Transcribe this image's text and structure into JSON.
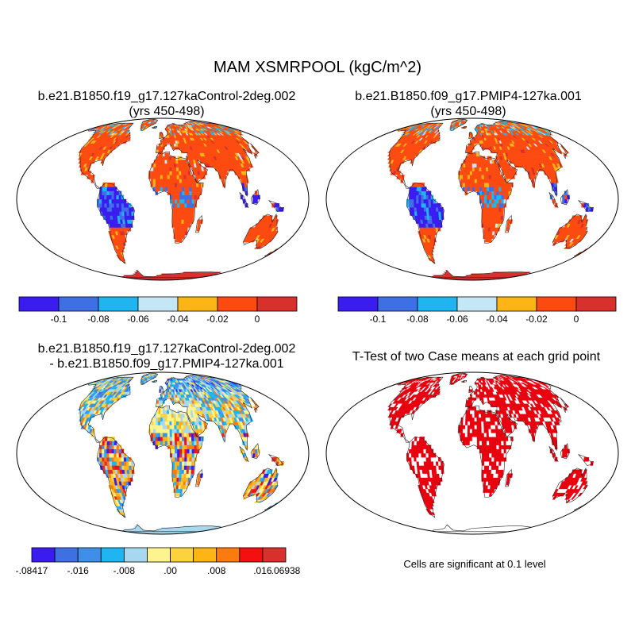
{
  "title": "MAM XSMRPOOL (kgC/m^2)",
  "panels": [
    {
      "title_line1": "b.e21.B1850.f19_g17.127kaControl-2deg.002",
      "title_line2": "(yrs 450-498)"
    },
    {
      "title_line1": "b.e21.B1850.f09_g17.PMIP4-127ka.001",
      "title_line2": "(yrs 450-498)"
    },
    {
      "title_line1": "b.e21.B1850.f19_g17.127kaControl-2deg.002",
      "title_line2": "- b.e21.B1850.f09_g17.PMIP4-127ka.001"
    },
    {
      "title_line1": "T-Test of two Case means at each grid point",
      "title_line2": ""
    }
  ],
  "colorbars": {
    "main": {
      "colors": [
        "#3a1cf0",
        "#3f6fe5",
        "#1eb5f1",
        "#c4e6f5",
        "#fdb515",
        "#fd4a10",
        "#d7302d"
      ],
      "labels": [
        "-0.1",
        "-0.08",
        "-0.06",
        "-0.04",
        "-0.02",
        "0"
      ]
    },
    "diff": {
      "colors": [
        "#3a1cf0",
        "#3f6fe5",
        "#3f8fe8",
        "#1eb5f1",
        "#a6d8f0",
        "#fdf490",
        "#fcd33c",
        "#fdb515",
        "#fd7a0f",
        "#f41010",
        "#d7302d"
      ],
      "labels": [
        "-.08417",
        "-.016",
        "-.008",
        ".00",
        ".008",
        ".016",
        ".06938"
      ]
    }
  },
  "significance_note": "Cells are significant at 0.1 level",
  "significance_color": "#e8000e"
}
